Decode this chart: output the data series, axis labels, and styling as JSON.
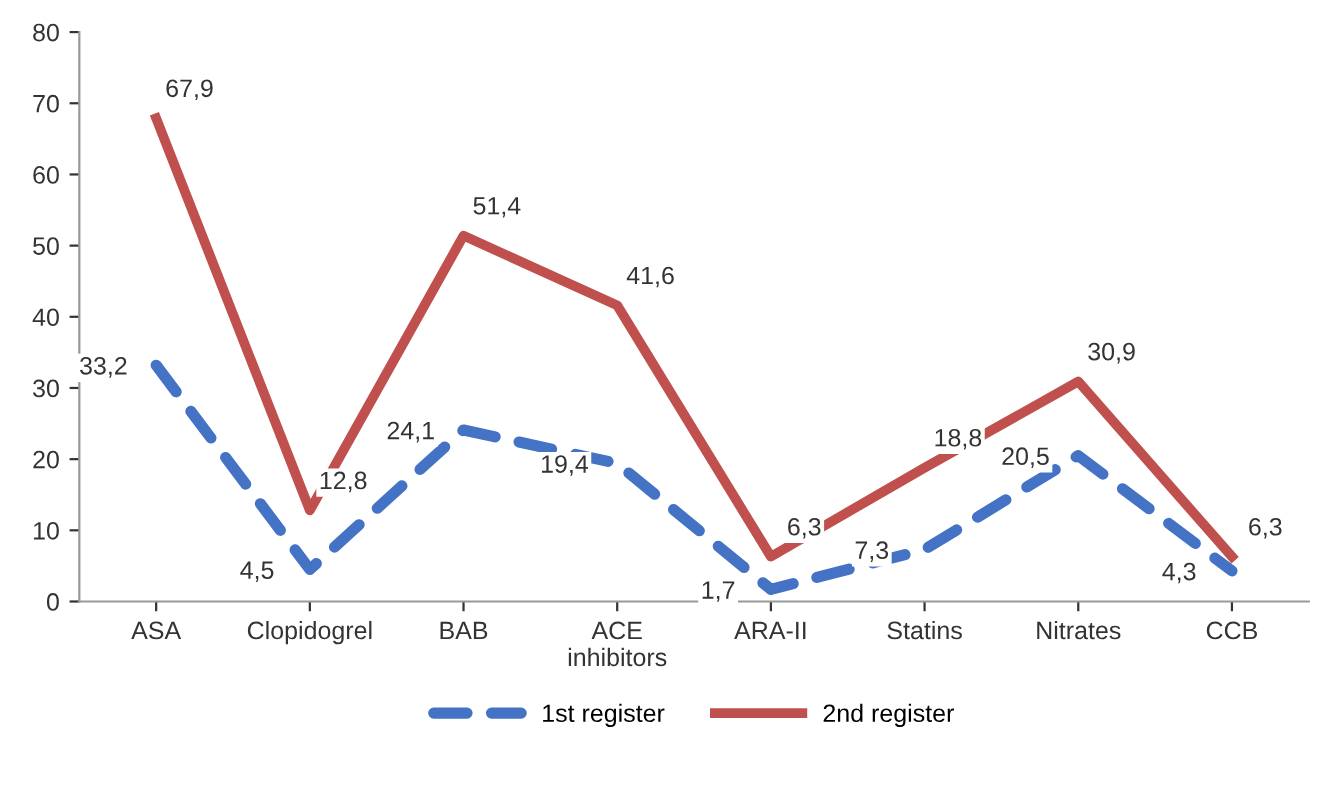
{
  "chart_data": {
    "type": "line",
    "categories": [
      "ASA",
      "Clopidogrel",
      "BAB",
      "ACE\ninhibitors",
      "ARA-II",
      "Statins",
      "Nitrates",
      "CCB"
    ],
    "series": [
      {
        "name": "1st register",
        "color": "#4472c4",
        "line_style": "dashed",
        "values": [
          33.2,
          4.5,
          24.1,
          19.4,
          1.7,
          7.3,
          20.5,
          4.3
        ],
        "value_labels": [
          "33,2",
          "4,5",
          "24,1",
          "19,4",
          "1,7",
          "7,3",
          "20,5",
          "4,3"
        ]
      },
      {
        "name": "2nd register",
        "color": "#c0504d",
        "line_style": "solid",
        "values": [
          67.9,
          12.8,
          51.4,
          41.6,
          6.3,
          18.8,
          30.9,
          6.3
        ],
        "value_labels": [
          "67,9",
          "12,8",
          "51,4",
          "41,6",
          "6,3",
          "18,8",
          "30,9",
          "6,3"
        ]
      }
    ],
    "ylim": [
      0,
      80
    ],
    "yticks": [
      0,
      10,
      20,
      30,
      40,
      50,
      60,
      70,
      80
    ],
    "grid": false,
    "legend": "bottom",
    "marker": "none"
  }
}
